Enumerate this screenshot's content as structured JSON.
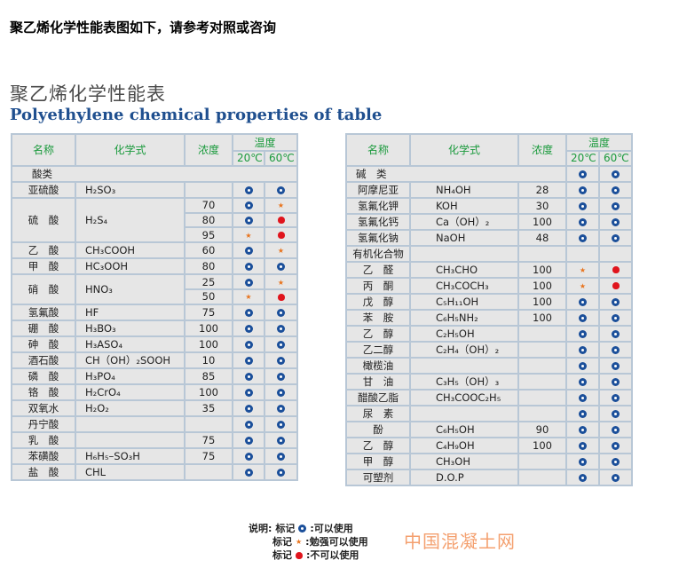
{
  "intro": "聚乙烯化学性能表图如下，请参考对照或咨询",
  "title_cn": "聚乙烯化学性能表",
  "title_en": "Polyethylene chemical properties of table",
  "colors": {
    "ok": "#1b4f9a",
    "fair": "#e8731c",
    "no": "#e0141c",
    "header_text": "#1a9a3c",
    "title_en": "#1f4f8f"
  },
  "headers": {
    "name": "名称",
    "formula": "化学式",
    "conc": "浓度",
    "temp": "温度",
    "t20": "20℃",
    "t60": "60℃"
  },
  "left_table": [
    {
      "category": "酸类"
    },
    {
      "name": "亚硫酸",
      "formula": "H₂SO₃",
      "conc": "",
      "t20": "ok",
      "t60": "ok"
    },
    {
      "name": "硫　酸",
      "formula": "H₂S₄",
      "span": 3,
      "conc": "70",
      "t20": "ok",
      "t60": "fair"
    },
    {
      "conc": "80",
      "t20": "ok",
      "t60": "no",
      "cont": true
    },
    {
      "conc": "95",
      "t20": "fair",
      "t60": "no",
      "cont": true
    },
    {
      "name": "乙　酸",
      "formula": "CH₃COOH",
      "conc": "60",
      "t20": "ok",
      "t60": "fair"
    },
    {
      "name": "甲　酸",
      "formula": "HC₃OOH",
      "conc": "80",
      "t20": "ok",
      "t60": "ok"
    },
    {
      "name": "硝　酸",
      "formula": "HNO₃",
      "span": 2,
      "conc": "25",
      "t20": "ok",
      "t60": "fair"
    },
    {
      "conc": "50",
      "t20": "fair",
      "t60": "no",
      "cont": true
    },
    {
      "name": "氢氟酸",
      "formula": "HF",
      "conc": "75",
      "t20": "ok",
      "t60": "ok"
    },
    {
      "name": "硼　酸",
      "formula": "H₃BO₃",
      "conc": "100",
      "t20": "ok",
      "t60": "ok"
    },
    {
      "name": "砷　酸",
      "formula": "H₃ASO₄",
      "conc": "100",
      "t20": "ok",
      "t60": "ok"
    },
    {
      "name": "酒石酸",
      "formula": "CH（OH）₂SOOH",
      "conc": "10",
      "t20": "ok",
      "t60": "ok"
    },
    {
      "name": "磷　酸",
      "formula": "H₃PO₄",
      "conc": "85",
      "t20": "ok",
      "t60": "ok"
    },
    {
      "name": "铬　酸",
      "formula": "H₂CrO₄",
      "conc": "100",
      "t20": "ok",
      "t60": "ok"
    },
    {
      "name": "双氧水",
      "formula": "H₂O₂",
      "conc": "35",
      "t20": "ok",
      "t60": "ok"
    },
    {
      "name": "丹宁酸",
      "formula": "",
      "conc": "",
      "t20": "ok",
      "t60": "ok"
    },
    {
      "name": "乳　酸",
      "formula": "",
      "conc": "75",
      "t20": "ok",
      "t60": "ok"
    },
    {
      "name": "苯磺酸",
      "formula": "H₆H₅–SO₃H",
      "conc": "75",
      "t20": "ok",
      "t60": "ok"
    },
    {
      "name": "盐　酸",
      "formula": "CHL",
      "conc": "",
      "t20": "ok",
      "t60": "ok"
    }
  ],
  "right_table": [
    {
      "name": "碱　类",
      "span3": true,
      "t20": "ok",
      "t60": "ok"
    },
    {
      "name": "阿摩尼亚",
      "formula": "NH₄OH",
      "conc": "28",
      "t20": "ok",
      "t60": "ok"
    },
    {
      "name": "氢氟化钾",
      "formula": "KOH",
      "conc": "30",
      "t20": "ok",
      "t60": "ok"
    },
    {
      "name": "氢氟化钙",
      "formula": "Ca（OH）₂",
      "conc": "100",
      "t20": "ok",
      "t60": "ok"
    },
    {
      "name": "氢氟化钠",
      "formula": "NaOH",
      "conc": "48",
      "t20": "ok",
      "t60": "ok"
    },
    {
      "name": "有机化合物",
      "formula": "",
      "conc": "",
      "t20": "",
      "t60": ""
    },
    {
      "name": "乙　醛",
      "formula": "CH₃CHO",
      "conc": "100",
      "t20": "fair",
      "t60": "no"
    },
    {
      "name": "丙　酮",
      "formula": "CH₃COCH₃",
      "conc": "100",
      "t20": "fair",
      "t60": "no"
    },
    {
      "name": "戊　醇",
      "formula": "C₅H₁₁OH",
      "conc": "100",
      "t20": "ok",
      "t60": "ok"
    },
    {
      "name": "苯　胺",
      "formula": "C₆H₅NH₂",
      "conc": "100",
      "t20": "ok",
      "t60": "ok"
    },
    {
      "name": "乙　醇",
      "formula": "C₂H₅OH",
      "conc": "",
      "t20": "ok",
      "t60": "ok"
    },
    {
      "name": "乙二醇",
      "formula": "C₂H₄（OH）₂",
      "conc": "",
      "t20": "ok",
      "t60": "ok"
    },
    {
      "name": "橄榄油",
      "formula": "",
      "conc": "",
      "t20": "ok",
      "t60": "ok"
    },
    {
      "name": "甘　油",
      "formula": "C₃H₅（OH）₃",
      "conc": "",
      "t20": "ok",
      "t60": "ok"
    },
    {
      "name": "醋酸乙脂",
      "formula": "CH₃COOC₂H₅",
      "conc": "",
      "t20": "ok",
      "t60": "ok"
    },
    {
      "name": "尿　素",
      "formula": "",
      "conc": "",
      "t20": "ok",
      "t60": "ok"
    },
    {
      "name": "酚",
      "formula": "C₆H₅OH",
      "conc": "90",
      "t20": "ok",
      "t60": "ok"
    },
    {
      "name": "乙　醇",
      "formula": "C₄H₉OH",
      "conc": "100",
      "t20": "ok",
      "t60": "ok"
    },
    {
      "name": "甲　醇",
      "formula": "CH₃OH",
      "conc": "",
      "t20": "ok",
      "t60": "ok"
    },
    {
      "name": "可塑剂",
      "formula": "D.O.P",
      "conc": "",
      "t20": "ok",
      "t60": "ok"
    }
  ],
  "legend": {
    "prefix": "说明:",
    "mark_label": "标记",
    "items": [
      {
        "mark": "ok",
        "text": ":可以使用"
      },
      {
        "mark": "fair",
        "text": ":勉强可以使用"
      },
      {
        "mark": "no",
        "text": ":不可以使用"
      }
    ]
  },
  "watermark": "中国混凝土网"
}
